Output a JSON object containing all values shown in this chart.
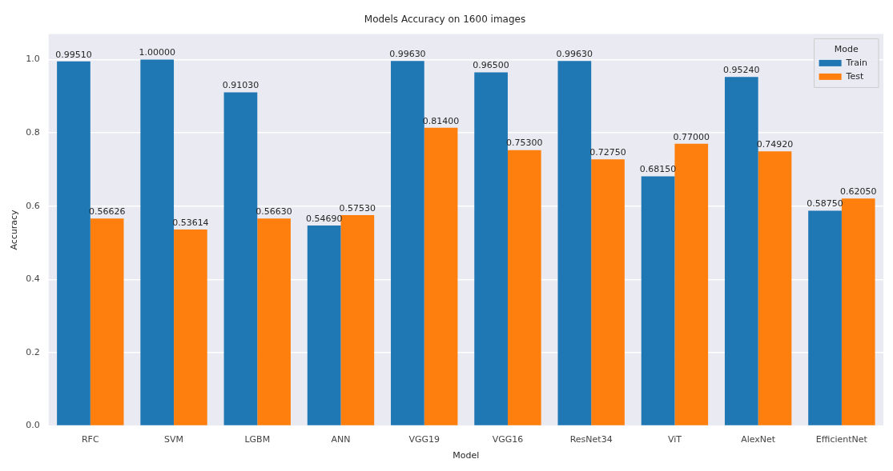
{
  "chart_data": {
    "type": "bar",
    "title": "Models Accuracy on 1600 images",
    "xlabel": "Model",
    "ylabel": "Accuracy",
    "legend_title": "Mode",
    "legend": "top right",
    "grid": "y",
    "categories": [
      "RFC",
      "SVM",
      "LGBM",
      "ANN",
      "VGG19",
      "VGG16",
      "ResNet34",
      "ViT",
      "AlexNet",
      "EfficientNet"
    ],
    "ylim": [
      0,
      1.07
    ],
    "yticks": [
      {
        "value": 0,
        "label": "0.0"
      },
      0.2,
      0.4,
      0.6,
      0.8,
      {
        "value": 1,
        "label": "1.0"
      }
    ],
    "series": [
      {
        "name": "Train",
        "color": "#1f77b4",
        "values": [
          0.9951,
          1.0,
          0.9103,
          0.5469,
          0.9963,
          0.965,
          0.9963,
          0.6815,
          0.9524,
          0.5875
        ],
        "value_labels": [
          "0.99510",
          "1.00000",
          "0.91030",
          "0.54690",
          "0.99630",
          "0.96500",
          "0.99630",
          "0.68150",
          "0.95240",
          "0.58750"
        ]
      },
      {
        "name": "Test",
        "color": "#ff7f0e",
        "values": [
          0.56626,
          0.53614,
          0.5663,
          0.5753,
          0.814,
          0.753,
          0.7275,
          0.77,
          0.7492,
          0.6205
        ],
        "value_labels": [
          "0.56626",
          "0.53614",
          "0.56630",
          "0.57530",
          "0.81400",
          "0.75300",
          "0.72750",
          "0.77000",
          "0.74920",
          "0.62050"
        ]
      }
    ]
  }
}
